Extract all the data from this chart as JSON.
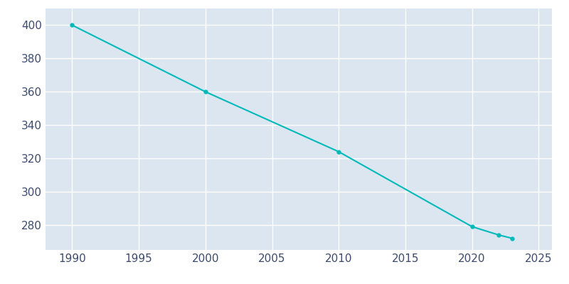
{
  "years": [
    1990,
    2000,
    2010,
    2020,
    2022,
    2023
  ],
  "population": [
    400,
    360,
    324,
    279,
    274,
    272
  ],
  "line_color": "#00BABA",
  "marker_color": "#00BABA",
  "axes_facecolor": "#dce6f0",
  "figure_facecolor": "#ffffff",
  "grid_color": "#ffffff",
  "tick_color": "#3c4a6e",
  "xlim": [
    1988,
    2026
  ],
  "ylim": [
    265,
    410
  ],
  "xticks": [
    1990,
    1995,
    2000,
    2005,
    2010,
    2015,
    2020,
    2025
  ],
  "yticks": [
    280,
    300,
    320,
    340,
    360,
    380,
    400
  ],
  "figsize": [
    8.0,
    4.0
  ],
  "dpi": 100
}
